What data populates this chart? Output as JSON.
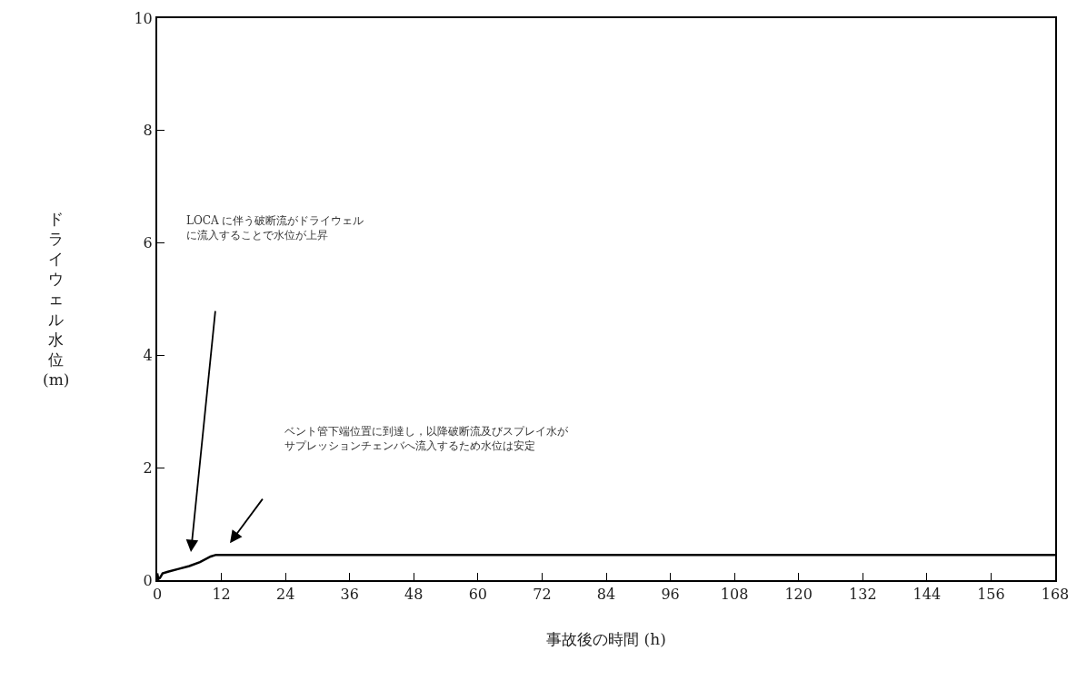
{
  "chart_data": {
    "type": "line",
    "xlabel": "事故後の時間 (h)",
    "ylabel": "ドライウェル水位(m)",
    "x": [
      0,
      0.2,
      0.5,
      1,
      2,
      4,
      6,
      8,
      10,
      11,
      24,
      36,
      48,
      60,
      72,
      84,
      96,
      108,
      120,
      132,
      144,
      156,
      168
    ],
    "series": [
      {
        "color": "#000000",
        "values": [
          0.12,
          0.02,
          0.04,
          0.12,
          0.15,
          0.2,
          0.25,
          0.32,
          0.42,
          0.45,
          0.45,
          0.45,
          0.45,
          0.45,
          0.45,
          0.45,
          0.45,
          0.45,
          0.45,
          0.45,
          0.45,
          0.45,
          0.45
        ]
      }
    ],
    "xlim": [
      0,
      168
    ],
    "xticks": [
      0,
      12,
      24,
      36,
      48,
      60,
      72,
      84,
      96,
      108,
      120,
      132,
      144,
      156,
      168
    ],
    "ylim": [
      0,
      10
    ],
    "yticks": [
      0,
      2,
      4,
      6,
      8,
      10
    ],
    "marker": "none",
    "line_style": "solid",
    "annotations": [
      "LOCA に伴う破断流がドライウェルに流入することで水位が上昇",
      "ベント管下端位置に到達し，以降破断流及びスプレイ水がサプレッションチェンバへ流入するため水位は安定"
    ]
  }
}
